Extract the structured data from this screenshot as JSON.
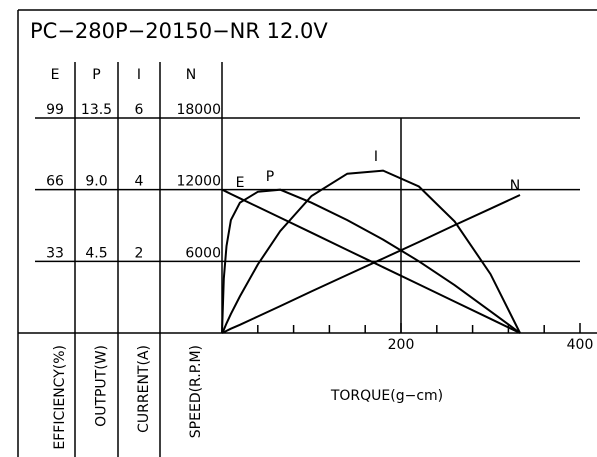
{
  "chart_data": {
    "type": "line",
    "title": "PC−280P−20150−NR    12.0V",
    "xlabel": "TORQUE(g−cm)",
    "x": [
      0,
      2,
      5,
      10,
      20,
      40,
      65,
      100,
      140,
      180,
      220,
      260,
      300,
      333
    ],
    "xlim": [
      0,
      400
    ],
    "xticks": [
      200,
      400
    ],
    "xticks_minor": [
      40,
      80,
      120,
      160,
      240,
      280,
      320,
      360
    ],
    "grid": true,
    "series": [
      {
        "name": "E",
        "ylabel": "EFFICIENCY(%)",
        "color": "#000000",
        "ylim": [
          0,
          99
        ],
        "yticks": [
          33,
          66,
          99
        ],
        "values": [
          0,
          25,
          40,
          52,
          60,
          65,
          66,
          60,
          52,
          43,
          33,
          22,
          10,
          0
        ]
      },
      {
        "name": "P",
        "ylabel": "OUTPUT(W)",
        "color": "#000000",
        "ylim": [
          0,
          13.5
        ],
        "yticks": [
          {
            "value": 4.5,
            "label": "4.5"
          },
          {
            "value": 9,
            "label": "9.0"
          },
          {
            "value": 13.5,
            "label": "13.5"
          }
        ],
        "values": [
          0,
          0.2,
          0.6,
          1.2,
          2.3,
          4.3,
          6.4,
          8.6,
          10.0,
          10.2,
          9.2,
          7.0,
          3.7,
          0
        ]
      },
      {
        "name": "I",
        "ylabel": "CURRENT(A)",
        "color": "#000000",
        "ylim": [
          0,
          6
        ],
        "yticks": [
          2,
          4,
          6
        ],
        "values": [
          0,
          0.02,
          0.06,
          0.12,
          0.23,
          0.46,
          0.75,
          1.16,
          1.62,
          2.08,
          2.54,
          3.01,
          3.47,
          3.85
        ]
      },
      {
        "name": "N",
        "ylabel": "SPEED(R.P.M)",
        "color": "#000000",
        "ylim": [
          0,
          18000
        ],
        "yticks": [
          6000,
          12000,
          18000
        ],
        "values": [
          12000,
          11930,
          11820,
          11640,
          11280,
          10560,
          9660,
          8400,
          6950,
          5510,
          4070,
          2630,
          1190,
          0
        ]
      }
    ]
  }
}
